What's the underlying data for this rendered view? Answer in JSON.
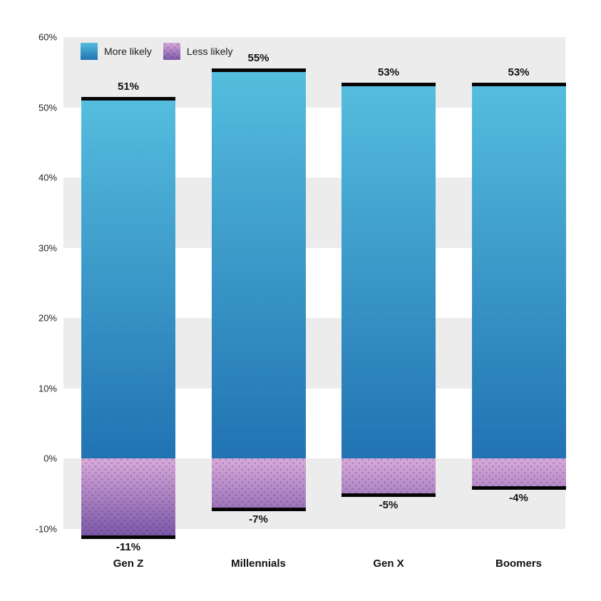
{
  "legend": {
    "items": [
      {
        "label": "More likely",
        "swatch": "blue-gradient"
      },
      {
        "label": "Less likely",
        "swatch": "purple-dots"
      }
    ]
  },
  "chart_data": {
    "type": "bar",
    "title": "",
    "xlabel": "",
    "ylabel": "",
    "categories": [
      "Gen Z",
      "Millennials",
      "Gen X",
      "Boomers"
    ],
    "series": [
      {
        "name": "More likely",
        "values": [
          51,
          55,
          53,
          53
        ],
        "data_labels": [
          "51%",
          "55%",
          "53%",
          "53%"
        ]
      },
      {
        "name": "Less likely",
        "values": [
          -11,
          -7,
          -5,
          -4
        ],
        "data_labels": [
          "-11%",
          "-7%",
          "-5%",
          "-4%"
        ]
      }
    ],
    "y_axis": {
      "range": [
        -10,
        60
      ],
      "ticks": [
        {
          "value": 60,
          "label": "60%"
        },
        {
          "value": 50,
          "label": "50%"
        },
        {
          "value": 40,
          "label": "40%"
        },
        {
          "value": 30,
          "label": "30%"
        },
        {
          "value": 20,
          "label": "20%"
        },
        {
          "value": 10,
          "label": "10%"
        },
        {
          "value": 0,
          "label": "0%"
        },
        {
          "value": -10,
          "label": "-10%"
        }
      ]
    },
    "grid": "alternating horizontal gray bands, no gridlines",
    "legend_position": "top-left",
    "colors": {
      "positive_top": "#55bdde",
      "positive_bottom": "#2173b2",
      "negative_top": "#d9abda",
      "negative_bottom": "#7b58a8",
      "negative_dot": "rgba(60,20,90,0.18)",
      "band": "#ececec",
      "cap": "#050505",
      "text": "#111111"
    }
  }
}
